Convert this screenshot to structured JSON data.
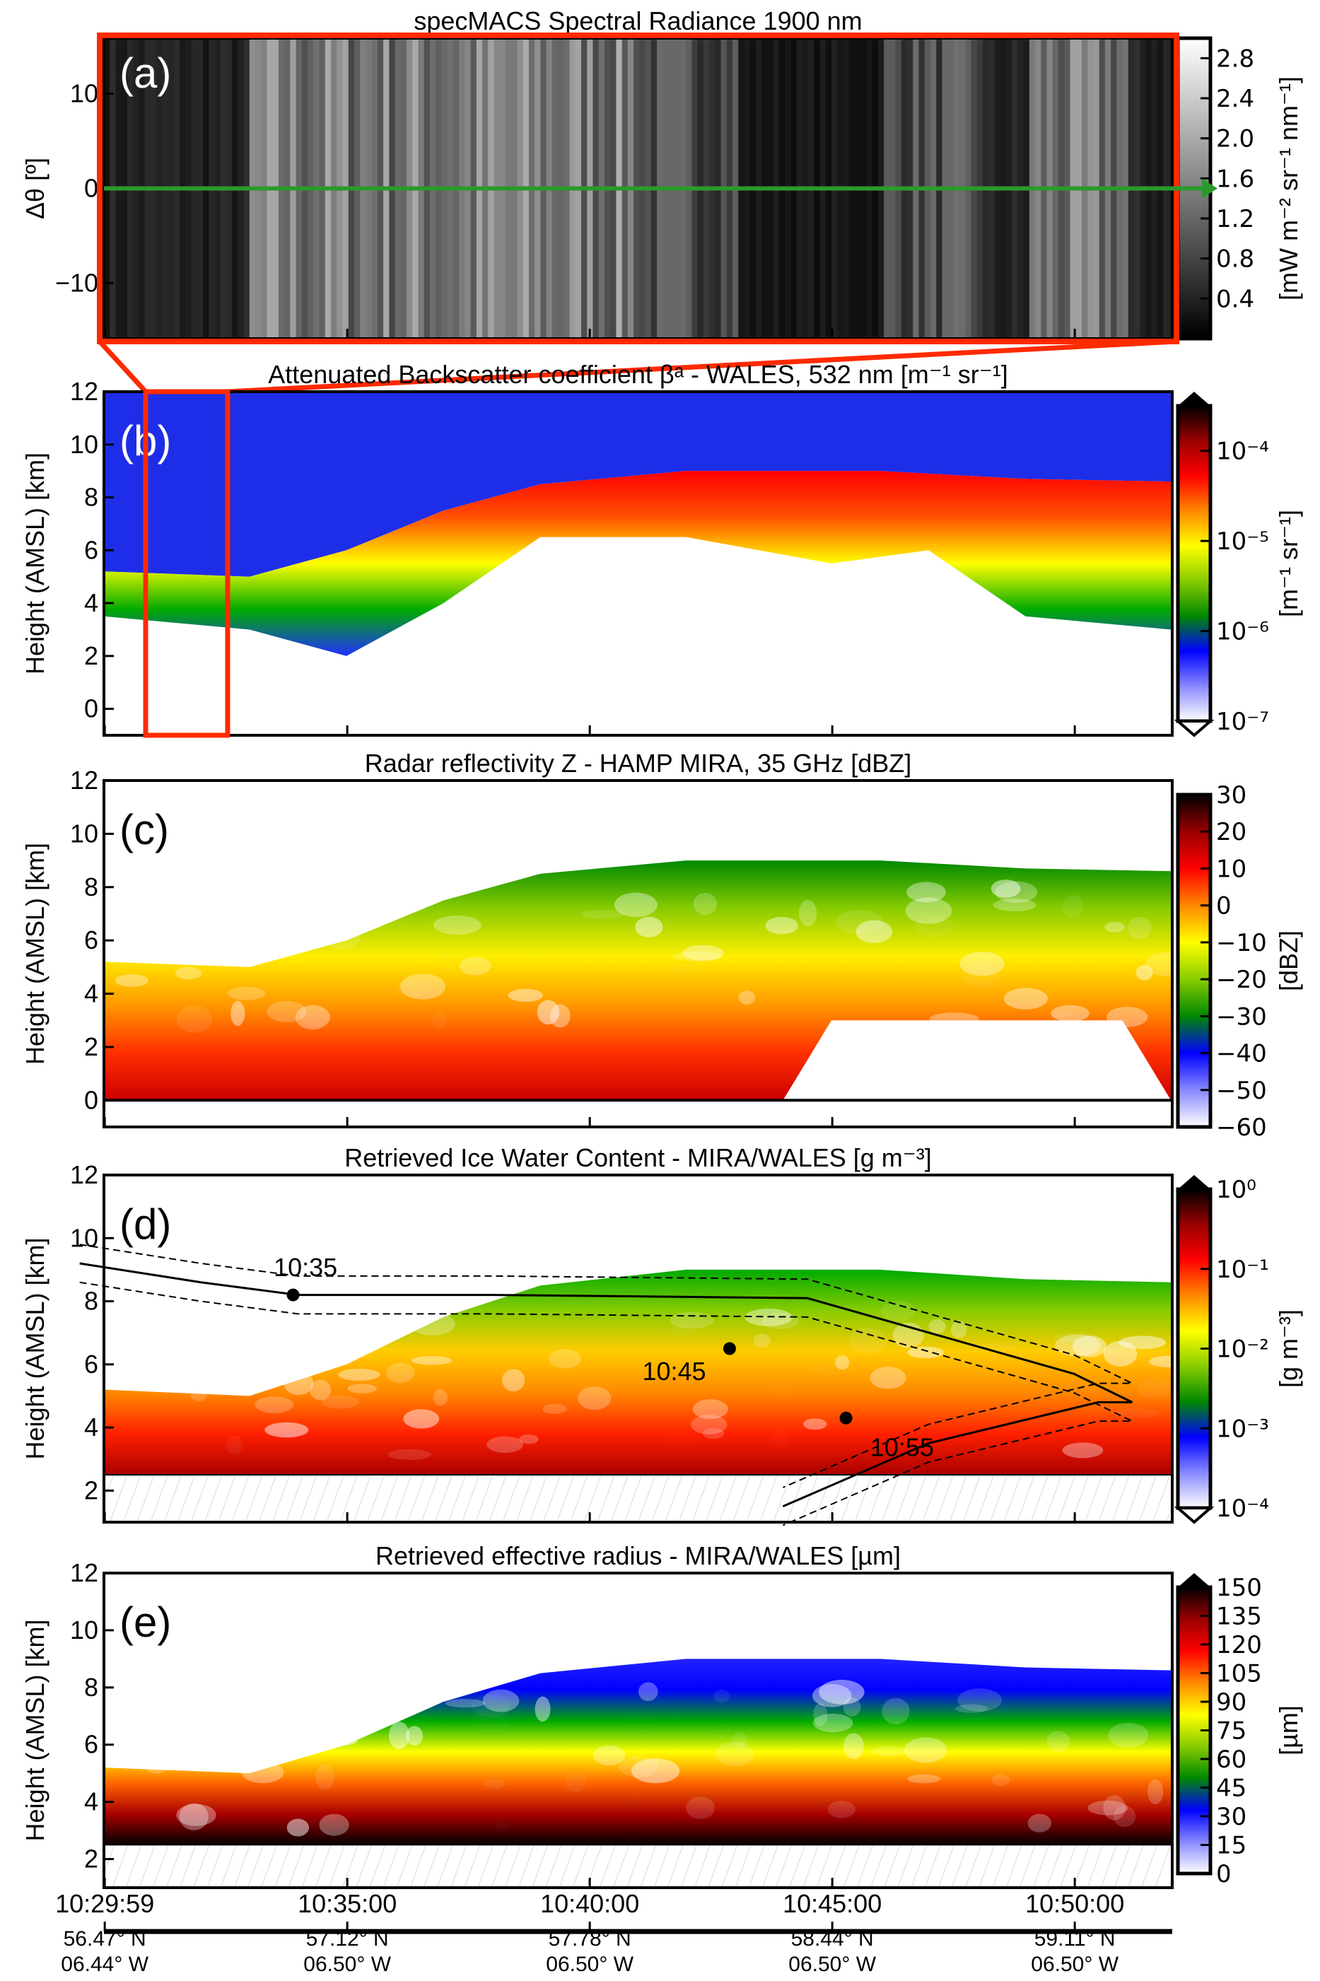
{
  "chart_data": [
    {
      "type": "heatmap",
      "panel_label": "(a)",
      "title": "specMACS Spectral Radiance 1900 nm",
      "ylabel": "Δθ [º]",
      "yticks": [
        "10",
        "0",
        "−10"
      ],
      "ylim": [
        -16,
        16
      ],
      "colorbar": {
        "ticks": [
          "2.8",
          "2.4",
          "2.0",
          "1.6",
          "1.2",
          "0.8",
          "0.4"
        ],
        "label": "[mW m⁻² sr⁻¹ nm⁻¹]",
        "range": [
          0,
          3.0
        ],
        "colormap": "gray"
      },
      "annotation_colors": {
        "highlight_box": "#ff2a00",
        "arrow": "#2a9a2a"
      }
    },
    {
      "type": "heatmap",
      "panel_label": "(b)",
      "title": "Attenuated Backscatter coefficient βᵃ - WALES, 532 nm [m⁻¹ sr⁻¹]",
      "ylabel": "Height (AMSL) [km]",
      "yticks": [
        "12",
        "10",
        "8",
        "6",
        "4",
        "2",
        "0"
      ],
      "ylim": [
        -1,
        12
      ],
      "colorbar": {
        "ticks": [
          "10⁻⁴",
          "10⁻⁵",
          "10⁻⁶",
          "10⁻⁷"
        ],
        "label": "[m⁻¹ sr⁻¹]",
        "scale": "log",
        "range": [
          "10⁻⁷",
          "10⁻³·⁵"
        ],
        "colormap": "white-blue-green-yellow-red-black"
      }
    },
    {
      "type": "heatmap",
      "panel_label": "(c)",
      "title": "Radar reflectivity Z - HAMP MIRA, 35 GHz [dBZ]",
      "ylabel": "Height (AMSL) [km]",
      "yticks": [
        "12",
        "10",
        "8",
        "6",
        "4",
        "2",
        "0"
      ],
      "ylim": [
        -1,
        12
      ],
      "colorbar": {
        "ticks": [
          "30",
          "20",
          "10",
          "0",
          "−10",
          "−20",
          "−30",
          "−40",
          "−50",
          "−60"
        ],
        "label": "[dBZ]",
        "range": [
          -60,
          30
        ],
        "colormap": "white-blue-green-yellow-red-black"
      }
    },
    {
      "type": "heatmap",
      "panel_label": "(d)",
      "title": "Retrieved Ice Water Content - MIRA/WALES [g m⁻³]",
      "ylabel": "Height (AMSL) [km]",
      "yticks": [
        "12",
        "10",
        "8",
        "6",
        "4",
        "2"
      ],
      "ylim": [
        1,
        12
      ],
      "colorbar": {
        "ticks": [
          "10⁰",
          "10⁻¹",
          "10⁻²",
          "10⁻³",
          "10⁻⁴"
        ],
        "label": "[g m⁻³]",
        "scale": "log",
        "range": [
          "10⁻⁴",
          "10⁰"
        ],
        "colormap": "white-blue-green-yellow-red-black"
      },
      "annotations": [
        "10:35",
        "10:45",
        "10:55"
      ]
    },
    {
      "type": "heatmap",
      "panel_label": "(e)",
      "title": "Retrieved effective radius - MIRA/WALES [µm]",
      "ylabel": "Height (AMSL) [km]",
      "yticks": [
        "12",
        "10",
        "8",
        "6",
        "4",
        "2"
      ],
      "ylim": [
        1,
        12
      ],
      "colorbar": {
        "ticks": [
          "150",
          "135",
          "120",
          "105",
          "90",
          "75",
          "60",
          "45",
          "30",
          "15",
          "0"
        ],
        "label": "[µm]",
        "range": [
          0,
          150
        ],
        "colormap": "white-blue-green-yellow-red-black"
      }
    }
  ],
  "x_axis": {
    "time_ticks": [
      "10:29:59",
      "10:35:00",
      "10:40:00",
      "10:45:00",
      "10:50:00"
    ],
    "lat_ticks": [
      "56.47° N",
      "57.12° N",
      "57.78° N",
      "58.44° N",
      "59.11° N"
    ],
    "lon_ticks": [
      "06.44° W",
      "06.50° W",
      "06.50° W",
      "06.50° W",
      "06.50° W"
    ]
  }
}
